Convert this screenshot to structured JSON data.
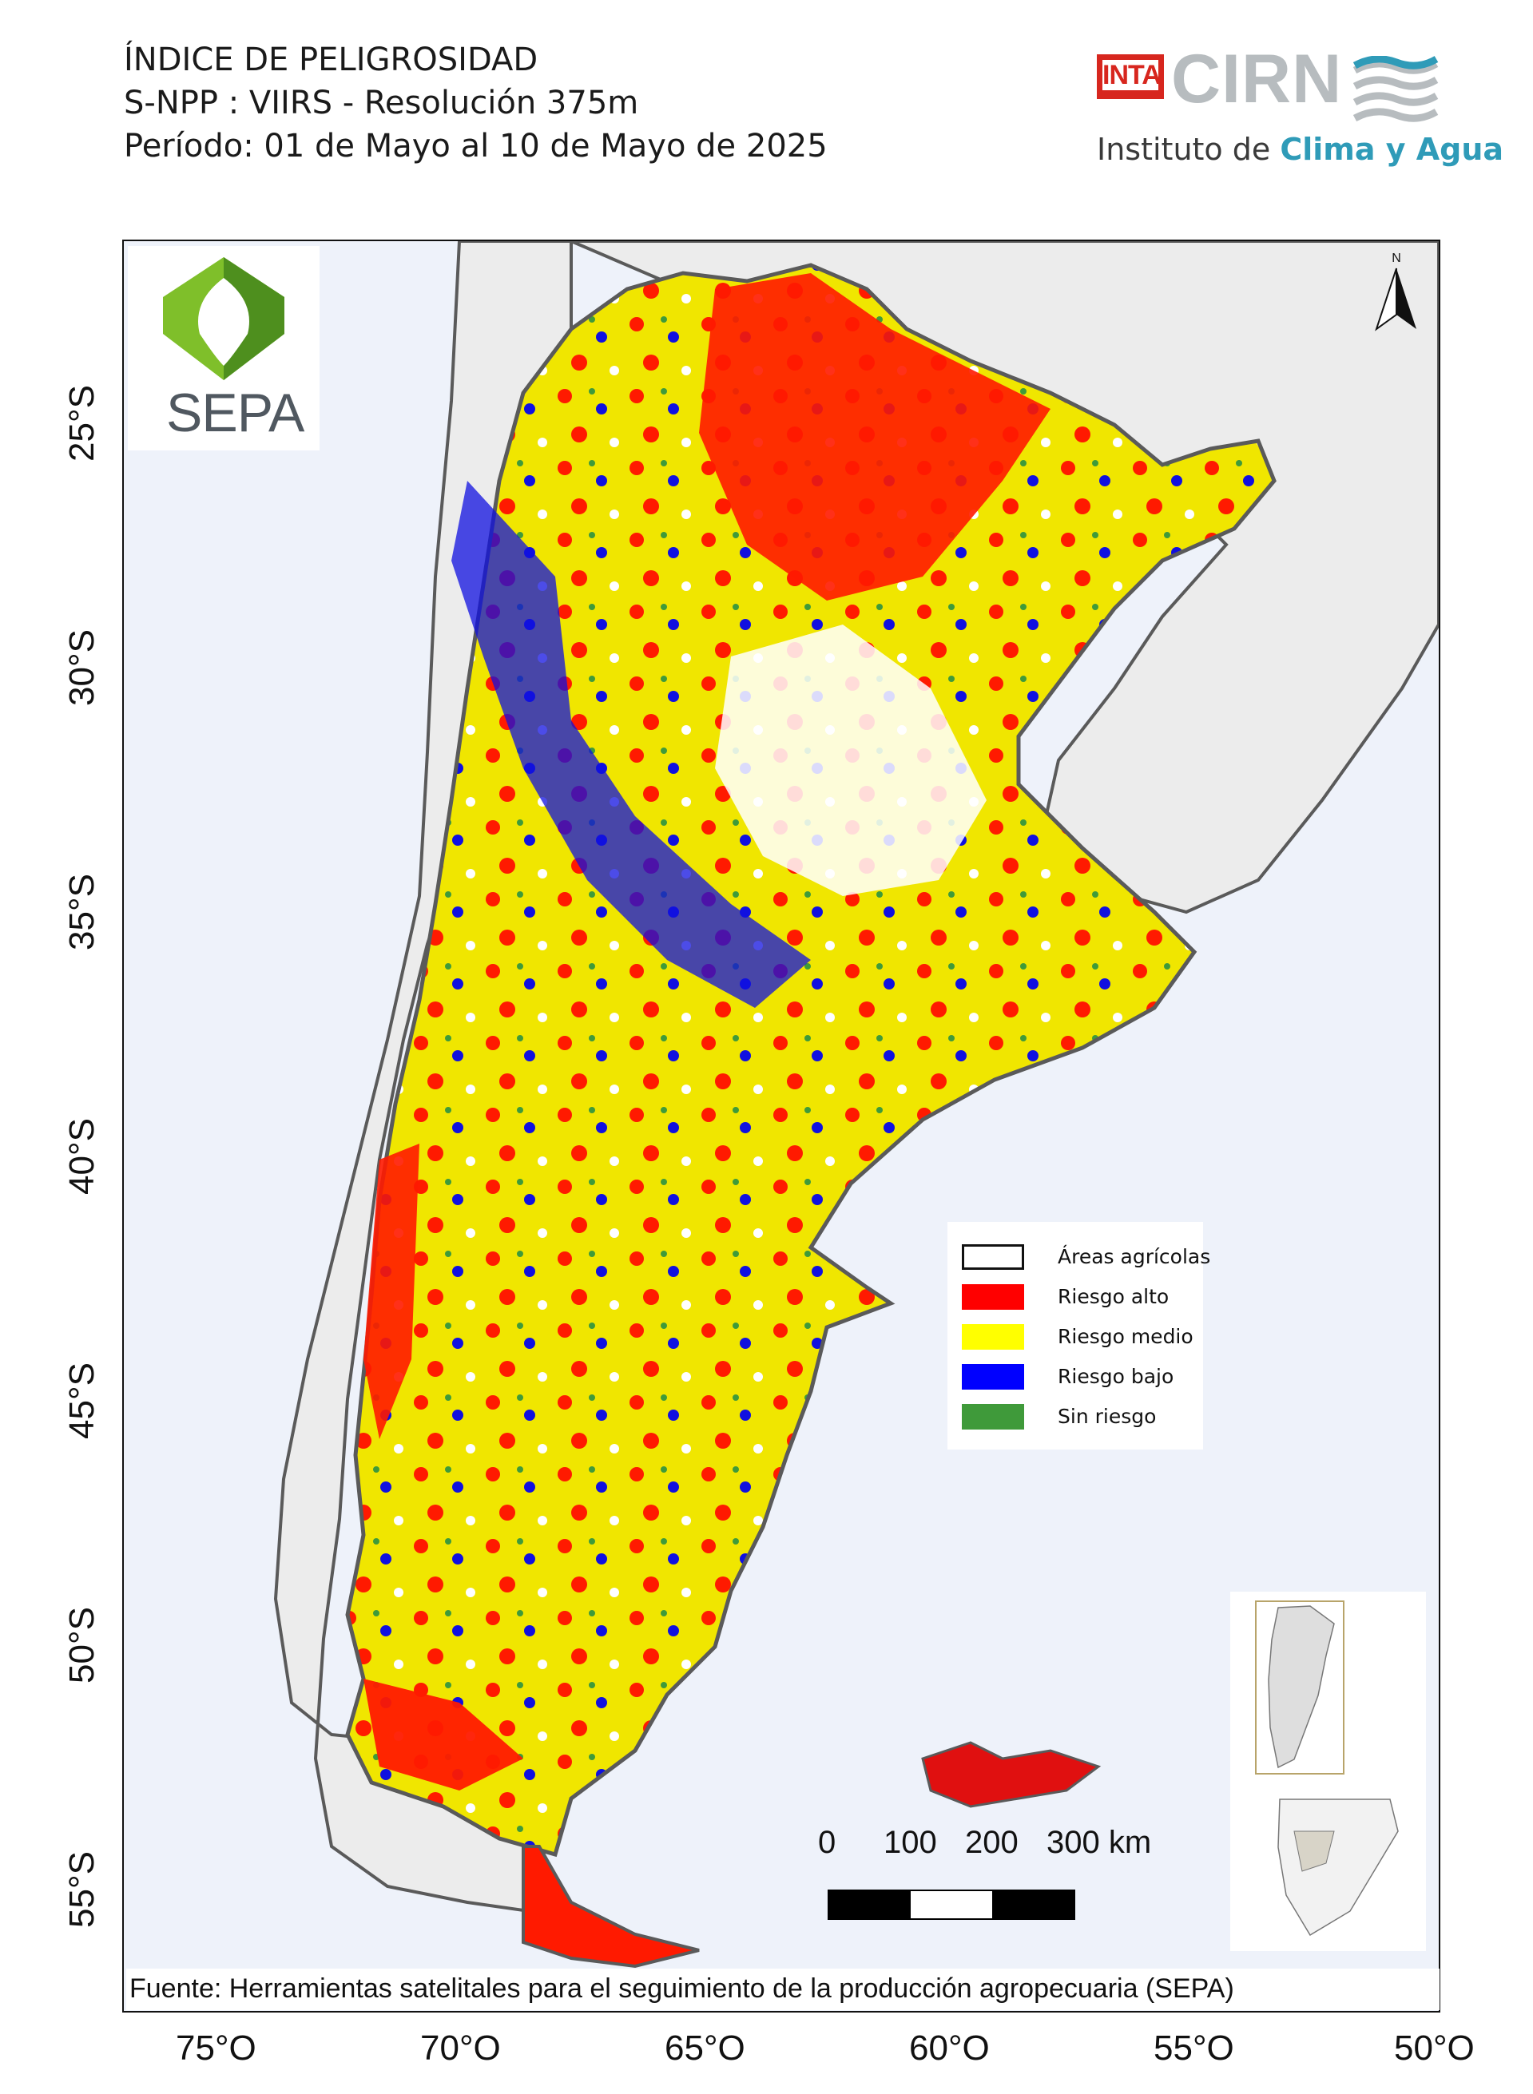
{
  "header": {
    "line1": "ÍNDICE DE PELIGROSIDAD",
    "line2": "S-NPP : VIIRS - Resolución 375m",
    "line3": "Período: 01 de Mayo al 10 de Mayo de 2025"
  },
  "logos": {
    "inta": "INTA",
    "cirn": "CIRN",
    "instituto_prefix": "Instituto de",
    "instituto_bold": "Clima y Agua",
    "sepa": "SEPA"
  },
  "north": "N",
  "axes": {
    "lat_labels": [
      "25°S",
      "30°S",
      "35°S",
      "40°S",
      "45°S",
      "50°S",
      "55°S"
    ],
    "lon_labels": [
      "75°O",
      "70°O",
      "65°O",
      "60°O",
      "55°O",
      "50°O"
    ]
  },
  "legend": {
    "items": [
      {
        "label": "Áreas agrícolas",
        "color": "#ffffff",
        "outline": true
      },
      {
        "label": "Riesgo alto",
        "color": "#ff0000",
        "outline": false
      },
      {
        "label": "Riesgo medio",
        "color": "#ffff00",
        "outline": false
      },
      {
        "label": "Riesgo bajo",
        "color": "#0000ff",
        "outline": false
      },
      {
        "label": "Sin riesgo",
        "color": "#3f9a3a",
        "outline": false
      }
    ]
  },
  "scale": {
    "labels": [
      "0",
      "100",
      "200",
      "300 km"
    ]
  },
  "source": "Fuente: Herramientas satelitales para el seguimiento de la producción agropecuaria (SEPA)",
  "colors": {
    "ocean": "#eef2fa",
    "neighbor_land": "#ececec",
    "border": "#5a5a5a"
  }
}
